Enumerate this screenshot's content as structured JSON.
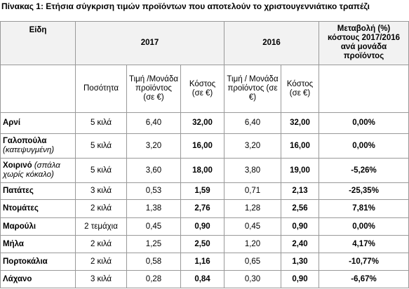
{
  "title": "Πίνακας 1: Ετήσια σύγκριση τιμών προϊόντων που αποτελούν το χριστουγεννιάτικο τραπέζι",
  "header": {
    "item": "Είδη",
    "year_2017": "2017",
    "year_2016": "2016",
    "change": "Μεταβολή (%) κόστους 2017/2016 ανά μονάδα προϊόντος",
    "quantity": "Ποσότητα",
    "price_2017": "Τιμή /Μονάδα προϊόντος (σε €)",
    "cost_2017": "Κόστος (σε €)",
    "price_2016": "Τιμή / Μονάδα προϊόντος (σε €)",
    "cost_2016": "Κόστος (σε €)"
  },
  "rows": [
    {
      "name": "Αρνί",
      "quantity": "5 κιλά",
      "price_2017": "6,40",
      "cost_2017": "32,00",
      "price_2016": "6,40",
      "cost_2016": "32,00",
      "change": "0,00%"
    },
    {
      "name": "Γαλοπούλα",
      "note": "(κατεψυγμένη)",
      "quantity": "5 κιλά",
      "price_2017": "3,20",
      "cost_2017": "16,00",
      "price_2016": "3,20",
      "cost_2016": "16,00",
      "change": "0,00%"
    },
    {
      "name": "Χοιρινό",
      "note": "(σπάλα χωρίς κόκαλο)",
      "quantity": "5 κιλά",
      "price_2017": "3,60",
      "cost_2017": "18,00",
      "price_2016": "3,80",
      "cost_2016": "19,00",
      "change": "-5,26%"
    },
    {
      "name": "Πατάτες",
      "quantity": "3 κιλά",
      "price_2017": "0,53",
      "cost_2017": "1,59",
      "price_2016": "0,71",
      "cost_2016": "2,13",
      "change": "-25,35%"
    },
    {
      "name": "Ντομάτες",
      "quantity": "2 κιλά",
      "price_2017": "1,38",
      "cost_2017": "2,76",
      "price_2016": "1,28",
      "cost_2016": "2,56",
      "change": "7,81%"
    },
    {
      "name": "Μαρούλι",
      "quantity": "2 τεμάχια",
      "price_2017": "0,45",
      "cost_2017": "0,90",
      "price_2016": "0,45",
      "cost_2016": "0,90",
      "change": "0,00%"
    },
    {
      "name": "Μήλα",
      "quantity": "2 κιλά",
      "price_2017": "1,25",
      "cost_2017": "2,50",
      "price_2016": "1,20",
      "cost_2016": "2,40",
      "change": "4,17%"
    },
    {
      "name": "Πορτοκάλια",
      "quantity": "2 κιλά",
      "price_2017": "0,58",
      "cost_2017": "1,16",
      "price_2016": "0,65",
      "cost_2016": "1,30",
      "change": "-10,77%"
    },
    {
      "name": "Λάχανο",
      "quantity": "3 κιλά",
      "price_2017": "0,28",
      "cost_2017": "0,84",
      "price_2016": "0,30",
      "cost_2016": "0,90",
      "change": "-6,67%"
    }
  ]
}
